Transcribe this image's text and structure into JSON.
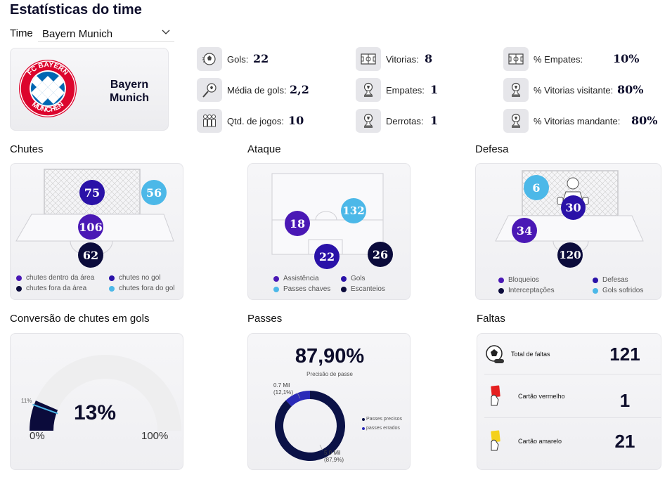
{
  "page_title": "Estatísticas do time",
  "team_filter": {
    "label": "Time",
    "value": "Bayern Munich"
  },
  "team_card": {
    "name": "Bayern Munich",
    "logo_text": "FC BAYERN MÜNCHEN"
  },
  "stats": [
    {
      "label": "Gols:",
      "value": "22",
      "icon": "football-icon"
    },
    {
      "label": "Média de gols:",
      "value": "2,2",
      "icon": "kick-ball-icon"
    },
    {
      "label": "Qtd. de jogos:",
      "value": "10",
      "icon": "team-players-icon"
    },
    {
      "label": "Vitorias:",
      "value": "8",
      "icon": "field-icon"
    },
    {
      "label": "Empates:",
      "value": "1",
      "icon": "trophy-icon"
    },
    {
      "label": "Derrotas:",
      "value": "1",
      "icon": "trophy-icon"
    },
    {
      "label": "% Empates:",
      "value": "10%",
      "icon": "field-icon"
    },
    {
      "label": "% Vitorias visitante:",
      "value": "80%",
      "icon": "trophy-icon"
    },
    {
      "label": "% Vitorias mandante:",
      "value": "80%",
      "icon": "trophy-icon"
    }
  ],
  "chutes": {
    "title": "Chutes",
    "bubbles": {
      "no_gol": "75",
      "fora_do_gol": "56",
      "dentro_area": "106",
      "fora_area": "62"
    },
    "legend": [
      "chutes dentro da área",
      "chutes no gol",
      "chutes fora da área",
      "chutes fora do gol"
    ]
  },
  "ataque": {
    "title": "Ataque",
    "bubbles": {
      "assistencia": "18",
      "passes_chaves": "132",
      "gols": "22",
      "escanteios": "26"
    },
    "legend": [
      "Assistência",
      "Gols",
      "Passes chaves",
      "Escanteios"
    ]
  },
  "defesa": {
    "title": "Defesa",
    "bubbles": {
      "gols_sofridos": "6",
      "defesas": "30",
      "bloqueios": "34",
      "interceptacoes": "120"
    },
    "legend": [
      "Bloqueios",
      "Defesas",
      "Interceptações",
      "Gols sofridos"
    ]
  },
  "conversao": {
    "title": "Conversão de chutes em gols",
    "value_label": "13%",
    "value": 13,
    "target_label": "11%",
    "target": 11,
    "min_label": "0%",
    "max_label": "100%"
  },
  "passes": {
    "title": "Passes",
    "value_label": "87,90%",
    "subtitle": "Precisão de passe",
    "slices": [
      {
        "name": "Passes precisos",
        "value": 87.9,
        "label_value": "5.0 Mil",
        "label_pct": "(87,9%)",
        "color": "#0b1247"
      },
      {
        "name": "passes errados",
        "value": 12.1,
        "label_value": "0.7 Mil",
        "label_pct": "(12,1%)",
        "color": "#2a2ab8"
      }
    ]
  },
  "faltas": {
    "title": "Faltas",
    "rows": [
      {
        "label": "Total de faltas",
        "value": "121",
        "icon": "whistle-ball-icon"
      },
      {
        "label": "Cartão vermelho",
        "value": "1",
        "icon": "red-card-icon"
      },
      {
        "label": "Cartão amarelo",
        "value": "21",
        "icon": "yellow-card-icon"
      }
    ]
  },
  "colors": {
    "dark": "#0b0b3b",
    "purple": "#3d16b0",
    "purple2": "#2a12a8",
    "light_blue": "#4cb8e8"
  }
}
